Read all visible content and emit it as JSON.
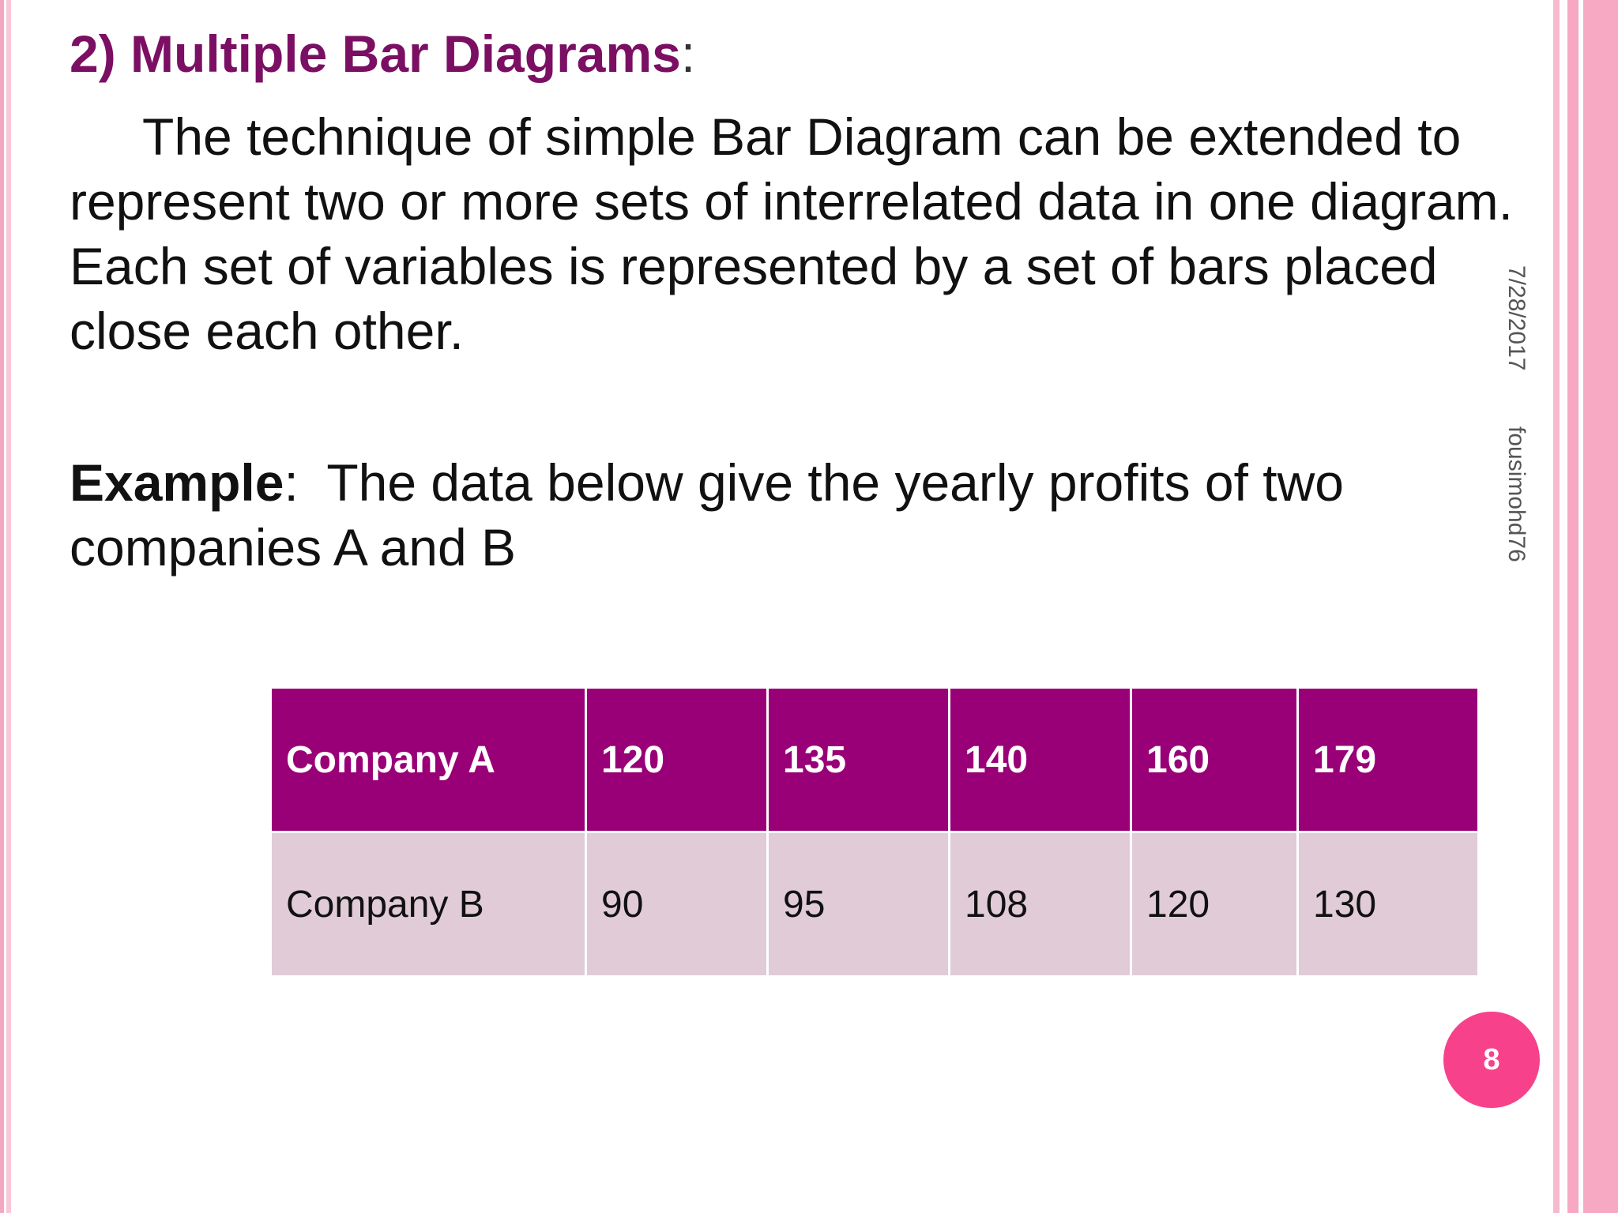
{
  "slide": {
    "title": "2) Multiple Bar Diagrams",
    "title_colon": ":",
    "body": "The technique of simple Bar Diagram can be extended to represent two or more sets of interrelated data in one diagram. Each set of variables is represented by a set of bars placed close each other.",
    "example_label": "Example",
    "example_colon": ":",
    "example_text": "The data below give the yearly profits of two companies A and B",
    "side_date": "7/28/2017",
    "side_author": "fousimohd76",
    "page_number": "8"
  },
  "table": {
    "rows": [
      {
        "label": "Company A",
        "values": [
          "120",
          "135",
          "140",
          "160",
          "179"
        ]
      },
      {
        "label": "Company B",
        "values": [
          "90",
          "95",
          "108",
          "120",
          "130"
        ]
      }
    ]
  },
  "colors": {
    "title": "#7b0f63",
    "header_row": "#990077",
    "body_row": "#e0cbd7",
    "badge": "#f7418b",
    "accent_pink": "#f7a8c2"
  }
}
